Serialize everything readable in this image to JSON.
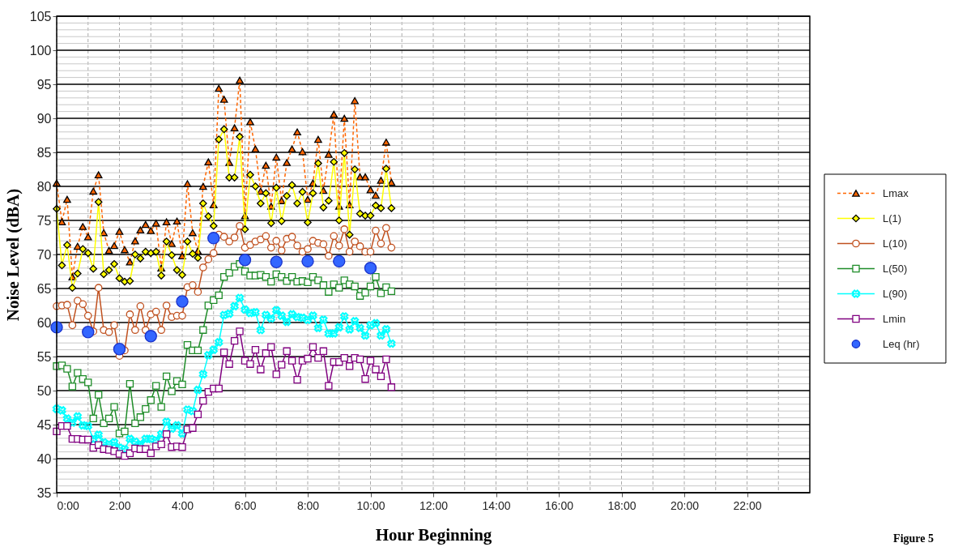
{
  "chart_data": {
    "type": "line",
    "xlabel": "Hour Beginning",
    "ylabel": "Noise Level (dBA)",
    "annotations": [
      "Figure 5"
    ],
    "xlim": [
      0,
      24
    ],
    "ylim": [
      35,
      105
    ],
    "xticks": [
      {
        "value": 0,
        "label": "0:00"
      },
      {
        "value": 1,
        "label": null
      },
      {
        "value": 2,
        "label": "2:00"
      },
      {
        "value": 3,
        "label": null
      },
      {
        "value": 4,
        "label": "4:00"
      },
      {
        "value": 5,
        "label": null
      },
      {
        "value": 6,
        "label": "6:00"
      },
      {
        "value": 7,
        "label": null
      },
      {
        "value": 8,
        "label": "8:00"
      },
      {
        "value": 9,
        "label": null
      },
      {
        "value": 10,
        "label": "10:00"
      },
      {
        "value": 11,
        "label": null
      },
      {
        "value": 12,
        "label": "12:00"
      },
      {
        "value": 13,
        "label": null
      },
      {
        "value": 14,
        "label": "14:00"
      },
      {
        "value": 15,
        "label": null
      },
      {
        "value": 16,
        "label": "16:00"
      },
      {
        "value": 17,
        "label": null
      },
      {
        "value": 18,
        "label": "18:00"
      },
      {
        "value": 19,
        "label": null
      },
      {
        "value": 20,
        "label": "20:00"
      },
      {
        "value": 21,
        "label": null
      },
      {
        "value": 22,
        "label": "22:00"
      },
      {
        "value": 23,
        "label": null
      }
    ],
    "yticks": [
      35,
      {
        "value": 36,
        "label": null
      },
      {
        "value": 37,
        "label": null
      },
      {
        "value": 38,
        "label": null
      },
      {
        "value": 39,
        "label": null
      },
      40,
      {
        "value": 41,
        "label": null
      },
      {
        "value": 42,
        "label": null
      },
      {
        "value": 43,
        "label": null
      },
      {
        "value": 44,
        "label": null
      },
      45,
      {
        "value": 46,
        "label": null
      },
      {
        "value": 47,
        "label": null
      },
      {
        "value": 48,
        "label": null
      },
      {
        "value": 49,
        "label": null
      },
      50,
      {
        "value": 51,
        "label": null
      },
      {
        "value": 52,
        "label": null
      },
      {
        "value": 53,
        "label": null
      },
      {
        "value": 54,
        "label": null
      },
      55,
      {
        "value": 56,
        "label": null
      },
      {
        "value": 57,
        "label": null
      },
      {
        "value": 58,
        "label": null
      },
      {
        "value": 59,
        "label": null
      },
      60,
      {
        "value": 61,
        "label": null
      },
      {
        "value": 62,
        "label": null
      },
      {
        "value": 63,
        "label": null
      },
      {
        "value": 64,
        "label": null
      },
      65,
      {
        "value": 66,
        "label": null
      },
      {
        "value": 67,
        "label": null
      },
      {
        "value": 68,
        "label": null
      },
      {
        "value": 69,
        "label": null
      },
      70,
      {
        "value": 71,
        "label": null
      },
      {
        "value": 72,
        "label": null
      },
      {
        "value": 73,
        "label": null
      },
      {
        "value": 74,
        "label": null
      },
      75,
      {
        "value": 76,
        "label": null
      },
      {
        "value": 77,
        "label": null
      },
      {
        "value": 78,
        "label": null
      },
      {
        "value": 79,
        "label": null
      },
      80,
      {
        "value": 81,
        "label": null
      },
      {
        "value": 82,
        "label": null
      },
      {
        "value": 83,
        "label": null
      },
      {
        "value": 84,
        "label": null
      },
      85,
      {
        "value": 86,
        "label": null
      },
      {
        "value": 87,
        "label": null
      },
      {
        "value": 88,
        "label": null
      },
      {
        "value": 89,
        "label": null
      },
      90,
      {
        "value": 91,
        "label": null
      },
      {
        "value": 92,
        "label": null
      },
      {
        "value": 93,
        "label": null
      },
      {
        "value": 94,
        "label": null
      },
      95,
      {
        "value": 96,
        "label": null
      },
      {
        "value": 97,
        "label": null
      },
      {
        "value": 98,
        "label": null
      },
      {
        "value": 99,
        "label": null
      },
      100,
      {
        "value": 101,
        "label": null
      },
      {
        "value": 102,
        "label": null
      },
      {
        "value": 103,
        "label": null
      },
      {
        "value": 104,
        "label": null
      },
      105
    ],
    "grid": true,
    "legend": "right",
    "x": [
      0,
      0.1667,
      0.3333,
      0.5,
      0.6667,
      0.8333,
      1,
      1.1667,
      1.3333,
      1.5,
      1.6667,
      1.8333,
      2,
      2.1667,
      2.3333,
      2.5,
      2.6667,
      2.8333,
      3,
      3.1667,
      3.3333,
      3.5,
      3.6667,
      3.8333,
      4,
      4.1667,
      4.3333,
      4.5,
      4.6667,
      4.8333,
      5,
      5.1667,
      5.3333,
      5.5,
      5.6667,
      5.8333,
      6,
      6.1667,
      6.3333,
      6.5,
      6.6667,
      6.8333,
      7,
      7.1667,
      7.3333,
      7.5,
      7.6667,
      7.8333,
      8,
      8.1667,
      8.3333,
      8.5,
      8.6667,
      8.8333,
      9,
      9.1667,
      9.3333,
      9.5,
      9.6667,
      9.8333,
      10,
      10.1667,
      10.3333,
      10.5,
      10.6667
    ],
    "series": [
      {
        "name": "Lmax",
        "color": "#ff6600",
        "marker": "triangle",
        "line_style": "dashed",
        "values": [
          80.5,
          74.8,
          78.1,
          66.7,
          71.2,
          74.1,
          72.6,
          79.3,
          81.7,
          73.2,
          70.6,
          71.3,
          73.4,
          70.7,
          68.9,
          72.0,
          73.6,
          74.4,
          73.5,
          74.6,
          68.0,
          74.8,
          71.6,
          74.9,
          69.8,
          80.4,
          73.2,
          70.5,
          80.0,
          83.6,
          77.3,
          94.4,
          92.8,
          83.5,
          88.6,
          95.6,
          75.7,
          89.5,
          85.5,
          79.3,
          83.1,
          77.1,
          84.3,
          77.9,
          83.5,
          85.5,
          88.0,
          85.1,
          78.1,
          80.5,
          86.9,
          79.4,
          84.7,
          90.6,
          77.1,
          90.0,
          77.3,
          92.6,
          81.4,
          81.4,
          79.5,
          78.7,
          80.9,
          86.5,
          80.6
        ]
      },
      {
        "name": "L(1)",
        "color": "#ffff00",
        "marker": "diamond",
        "line_style": "solid",
        "values": [
          76.7,
          68.4,
          71.4,
          65.1,
          67.2,
          70.8,
          70.2,
          67.9,
          77.7,
          67.1,
          67.7,
          68.6,
          66.5,
          66.0,
          66.1,
          70.0,
          69.4,
          70.4,
          70.2,
          70.4,
          66.9,
          71.9,
          69.9,
          67.7,
          67.0,
          71.9,
          70.1,
          69.5,
          77.5,
          75.6,
          74.2,
          86.9,
          88.4,
          81.3,
          81.3,
          87.3,
          73.7,
          81.7,
          80.0,
          77.5,
          79.0,
          74.6,
          79.8,
          74.9,
          78.6,
          80.2,
          77.5,
          79.2,
          74.7,
          79.0,
          83.4,
          76.9,
          77.9,
          83.6,
          75.0,
          84.9,
          72.9,
          82.5,
          76.0,
          75.7,
          75.7,
          77.2,
          76.8,
          82.6,
          76.8
        ]
      },
      {
        "name": "L(10)",
        "color": "#c0501e",
        "marker": "circle",
        "line_style": "solid",
        "values": [
          62.4,
          62.5,
          62.6,
          59.6,
          63.2,
          62.7,
          61.0,
          58.7,
          65.1,
          58.9,
          58.6,
          59.6,
          55.1,
          55.9,
          61.2,
          58.9,
          62.4,
          58.9,
          61.2,
          61.6,
          58.9,
          62.5,
          60.8,
          61.0,
          61.0,
          65.2,
          65.5,
          64.5,
          68.1,
          69.3,
          70.2,
          72.9,
          72.6,
          71.9,
          72.5,
          74.2,
          71.0,
          71.4,
          71.9,
          72.2,
          72.7,
          71.0,
          72.0,
          70.6,
          72.3,
          72.6,
          71.3,
          70.4,
          70.8,
          72.0,
          71.7,
          71.5,
          69.8,
          72.7,
          71.3,
          73.7,
          70.4,
          71.9,
          71.2,
          70.4,
          70.4,
          73.5,
          71.6,
          73.9,
          71.0
        ]
      },
      {
        "name": "L(50)",
        "color": "#1e8c28",
        "marker": "square",
        "line_style": "solid",
        "values": [
          53.6,
          53.7,
          53.2,
          50.6,
          52.6,
          51.7,
          51.2,
          45.9,
          49.4,
          45.2,
          45.9,
          47.6,
          43.7,
          44.0,
          51.0,
          45.2,
          46.1,
          47.3,
          48.6,
          50.7,
          47.6,
          52.1,
          49.9,
          51.4,
          50.9,
          56.7,
          55.9,
          55.9,
          58.9,
          62.5,
          63.3,
          64.0,
          66.7,
          67.3,
          68.2,
          68.6,
          67.5,
          66.9,
          66.9,
          67.0,
          66.7,
          66.0,
          67.1,
          66.7,
          66.1,
          66.7,
          66.0,
          66.1,
          65.9,
          66.7,
          66.2,
          65.5,
          64.5,
          65.6,
          65.1,
          66.2,
          65.6,
          65.3,
          63.9,
          64.4,
          65.3,
          66.7,
          64.3,
          65.2,
          64.6
        ]
      },
      {
        "name": "L(90)",
        "color": "#00ffff",
        "marker": "cross",
        "line_style": "solid",
        "values": [
          47.3,
          47.1,
          45.9,
          45.3,
          46.2,
          44.9,
          44.8,
          42.9,
          43.5,
          42.4,
          42.1,
          42.4,
          41.6,
          41.4,
          42.9,
          42.5,
          42.1,
          42.9,
          42.9,
          42.7,
          43.6,
          45.4,
          44.4,
          44.9,
          43.7,
          47.2,
          47.0,
          50.1,
          52.4,
          55.2,
          56.0,
          57.1,
          61.1,
          61.3,
          62.4,
          63.6,
          61.9,
          61.4,
          61.5,
          58.9,
          61.1,
          60.6,
          61.8,
          61.0,
          60.1,
          61.2,
          60.8,
          60.7,
          60.4,
          61.0,
          59.2,
          60.4,
          58.4,
          58.4,
          59.3,
          60.9,
          59.0,
          60.2,
          59.2,
          58.1,
          59.6,
          59.9,
          58.1,
          59.0,
          56.9
        ]
      },
      {
        "name": "Lmin",
        "color": "#800080",
        "marker": "square",
        "line_style": "solid",
        "values": [
          44.0,
          44.8,
          44.8,
          42.9,
          42.9,
          42.8,
          42.8,
          41.6,
          42.0,
          41.4,
          41.3,
          41.1,
          40.7,
          40.4,
          40.8,
          41.5,
          41.4,
          41.4,
          40.8,
          41.8,
          42.1,
          43.6,
          41.7,
          41.8,
          41.7,
          44.3,
          44.5,
          46.5,
          48.5,
          49.8,
          50.3,
          50.3,
          55.6,
          53.9,
          57.3,
          58.7,
          54.4,
          53.9,
          56.0,
          53.1,
          55.5,
          56.4,
          52.4,
          53.8,
          55.8,
          54.4,
          51.6,
          54.4,
          54.7,
          56.4,
          54.8,
          55.8,
          50.7,
          54.2,
          54.2,
          54.8,
          53.6,
          54.8,
          54.6,
          51.7,
          54.4,
          53.1,
          52.1,
          54.6,
          50.5
        ]
      },
      {
        "name": "Leq (hr)",
        "type": "scatter",
        "color": "#3366ff",
        "marker": "circle",
        "x": [
          0,
          1,
          2,
          3,
          4,
          5,
          6,
          7,
          8,
          9,
          10
        ],
        "values": [
          59.3,
          58.6,
          56.1,
          58.0,
          63.1,
          72.4,
          69.2,
          68.9,
          69.0,
          69.0,
          68.0
        ]
      }
    ]
  }
}
